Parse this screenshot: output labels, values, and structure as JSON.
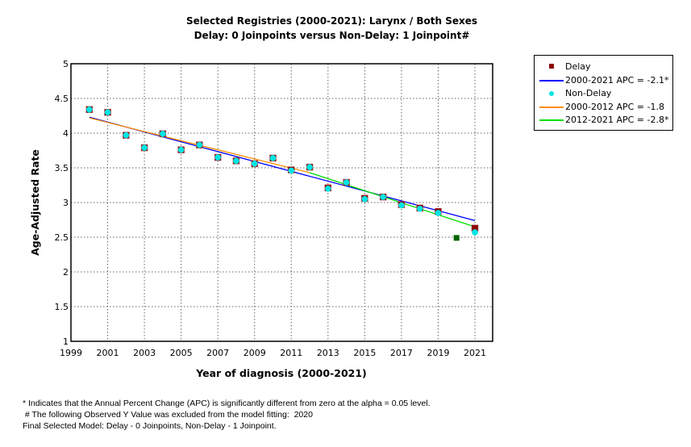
{
  "chart_data": {
    "type": "scatter",
    "title": "Selected Registries (2000-2021): Larynx / Both Sexes",
    "subtitle": "Delay: 0 Joinpoints  versus  Non-Delay: 1 Joinpoint#",
    "xlabel": "Year of diagnosis (2000-2021)",
    "ylabel": "Age-Adjusted Rate",
    "xlim": [
      1999,
      2022
    ],
    "ylim": [
      1,
      5
    ],
    "x_ticks": [
      1999,
      2001,
      2003,
      2005,
      2007,
      2009,
      2011,
      2013,
      2015,
      2017,
      2019,
      2021
    ],
    "y_ticks": [
      1,
      1.5,
      2,
      2.5,
      3,
      3.5,
      4,
      4.5,
      5
    ],
    "y_tick_labels": [
      "1",
      "1.5",
      "2",
      "2.5",
      "3",
      "3.5",
      "4",
      "4.5",
      "5"
    ],
    "grid": true,
    "legend_position": "right",
    "series": [
      {
        "name": "Delay",
        "kind": "observed",
        "color": "#8b0000",
        "x": [
          2000,
          2001,
          2002,
          2003,
          2004,
          2005,
          2006,
          2007,
          2008,
          2009,
          2010,
          2011,
          2012,
          2013,
          2014,
          2015,
          2016,
          2017,
          2018,
          2019,
          2021
        ],
        "y": [
          4.34,
          4.3,
          3.97,
          3.79,
          3.99,
          3.76,
          3.83,
          3.65,
          3.6,
          3.56,
          3.64,
          3.47,
          3.51,
          3.21,
          3.29,
          3.06,
          3.08,
          2.97,
          2.92,
          2.87,
          2.63
        ]
      },
      {
        "name": "Non-Delay",
        "kind": "observed",
        "color": "#00e5e5",
        "x": [
          2000,
          2001,
          2002,
          2003,
          2004,
          2005,
          2006,
          2007,
          2008,
          2009,
          2010,
          2011,
          2012,
          2013,
          2014,
          2015,
          2016,
          2017,
          2018,
          2019,
          2021
        ],
        "y": [
          4.34,
          4.3,
          3.97,
          3.79,
          3.99,
          3.76,
          3.83,
          3.65,
          3.6,
          3.56,
          3.64,
          3.46,
          3.51,
          3.2,
          3.29,
          3.05,
          3.08,
          2.96,
          2.91,
          2.85,
          2.57
        ]
      },
      {
        "name": "Excluded 2020",
        "kind": "excluded",
        "color": "#006400",
        "x": [
          2020
        ],
        "y": [
          2.49
        ]
      },
      {
        "name": "2000-2021 APC  = -2.1*",
        "kind": "fit",
        "color": "#0000ff",
        "x": [
          2000,
          2021
        ],
        "y": [
          4.23,
          2.74
        ]
      },
      {
        "name": "2000-2012 APC  = -1.8",
        "kind": "fit",
        "color": "#ff8c00",
        "x": [
          2000,
          2012
        ],
        "y": [
          4.22,
          3.43
        ]
      },
      {
        "name": "2012-2021 APC  = -2.8*",
        "kind": "fit",
        "color": "#00dd00",
        "x": [
          2012,
          2021
        ],
        "y": [
          3.43,
          2.65
        ]
      }
    ],
    "legend": [
      {
        "label": "Delay",
        "symbol": "square",
        "color": "#8b0000"
      },
      {
        "label": "2000-2021 APC  = -2.1*",
        "symbol": "line",
        "color": "#0000ff"
      },
      {
        "label": "Non-Delay",
        "symbol": "dot",
        "color": "#00e5e5"
      },
      {
        "label": "2000-2012 APC  = -1.8",
        "symbol": "line",
        "color": "#ff8c00"
      },
      {
        "label": "2012-2021 APC  = -2.8*",
        "symbol": "line",
        "color": "#00dd00"
      }
    ]
  },
  "footnotes": [
    "* Indicates that the Annual Percent Change (APC) is significantly different from zero at the alpha = 0.05 level.",
    " # The following Observed Y Value was excluded from the model fitting:  2020",
    "Final Selected Model: Delay - 0 Joinpoints, Non-Delay - 1 Joinpoint."
  ]
}
